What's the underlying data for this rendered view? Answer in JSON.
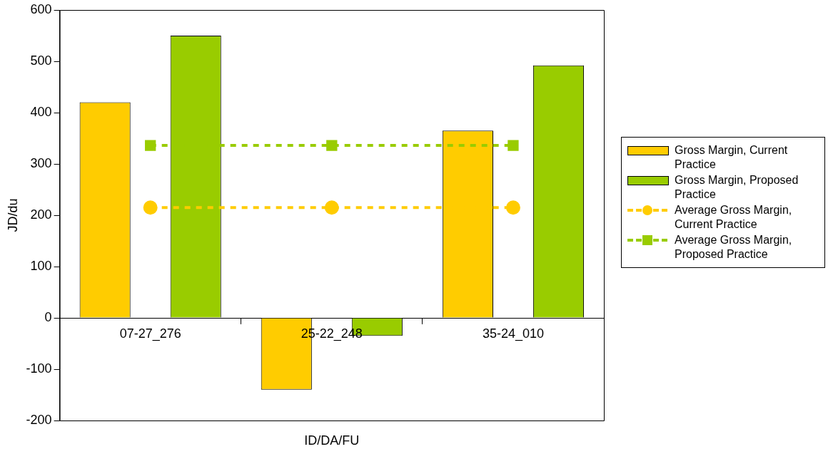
{
  "chart_data": {
    "type": "bar",
    "xlabel": "ID/DA/FU",
    "ylabel": "JD/du",
    "categories": [
      "07-27_276",
      "25-22_248",
      "35-24_010"
    ],
    "series": [
      {
        "name": "Gross Margin, Current Practice",
        "color": "#ffcc00",
        "values": [
          420,
          -140,
          365
        ]
      },
      {
        "name": "Gross Margin, Proposed Practice",
        "color": "#99cc00",
        "values": [
          550,
          -35,
          492
        ]
      },
      {
        "name": "Average Gross Margin, Current Practice",
        "type": "line",
        "color": "#ffcc00",
        "marker": "circle",
        "line_style": "dashed",
        "values": [
          215,
          215,
          215
        ]
      },
      {
        "name": "Average Gross Margin, Proposed Practice",
        "type": "line",
        "color": "#99cc00",
        "marker": "square",
        "line_style": "dashed",
        "values": [
          336,
          336,
          336
        ]
      }
    ],
    "ylim": [
      -200,
      600
    ],
    "yticks": [
      -200,
      -100,
      0,
      100,
      200,
      300,
      400,
      500,
      600
    ],
    "grid": false,
    "legend": "right"
  }
}
